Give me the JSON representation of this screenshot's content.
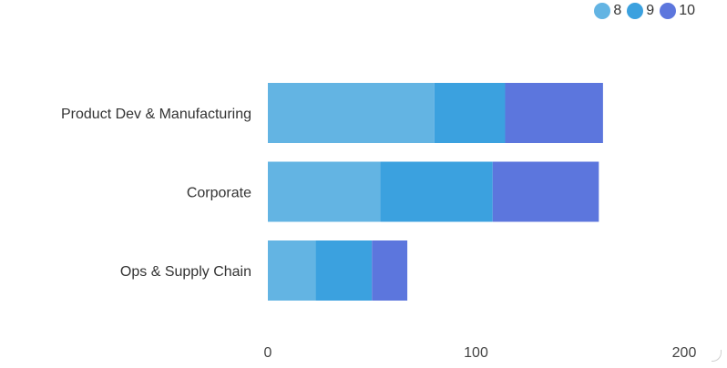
{
  "chart_data": {
    "type": "bar",
    "orientation": "horizontal",
    "stacked": true,
    "categories": [
      "Product Dev & Manufacturing",
      "Corporate",
      "Ops & Supply Chain"
    ],
    "series": [
      {
        "name": "8",
        "values": [
          80,
          54,
          23
        ],
        "color": "#63b4e3"
      },
      {
        "name": "9",
        "values": [
          34,
          54,
          27
        ],
        "color": "#3ba1df"
      },
      {
        "name": "10",
        "values": [
          47,
          51,
          17
        ],
        "color": "#5c76dd"
      }
    ],
    "xlim": [
      0,
      200
    ],
    "xticks": [
      0,
      100,
      200
    ],
    "grid": false,
    "legend_position": "top-right"
  }
}
